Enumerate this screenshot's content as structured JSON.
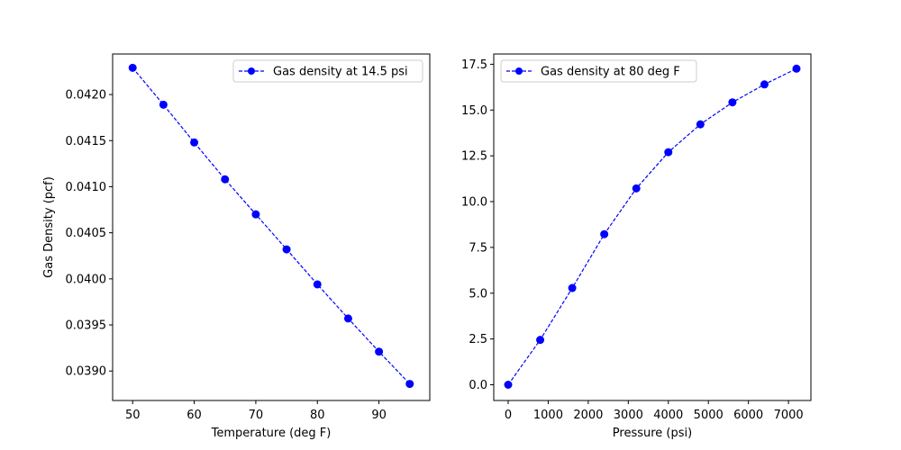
{
  "chart_data": [
    {
      "type": "line",
      "xlabel": "Temperature (deg F)",
      "ylabel": "Gas Density (pcf)",
      "xlim": [
        46.75,
        98.25
      ],
      "ylim": [
        0.03868,
        0.0244
      ],
      "ylim_note": "",
      "x_ticks": [
        50,
        60,
        70,
        80,
        90
      ],
      "y_ticks": [
        0.039,
        0.0395,
        0.04,
        0.0405,
        0.041,
        0.0415,
        0.042
      ],
      "x_tick_labels": [
        "50",
        "60",
        "70",
        "80",
        "90"
      ],
      "y_tick_labels": [
        "0.0390",
        "0.0395",
        "0.0400",
        "0.0405",
        "0.0410",
        "0.0415",
        "0.0420"
      ],
      "legend_position": "top-right",
      "series": [
        {
          "name": "Gas density at 14.5 psi",
          "color": "#0000ff",
          "line_style": "dashed",
          "marker": "circle",
          "x": [
            50,
            55,
            60,
            65,
            70,
            75,
            80,
            85,
            90,
            95
          ],
          "y": [
            0.04229,
            0.04189,
            0.04148,
            0.04108,
            0.0407,
            0.04032,
            0.03994,
            0.03957,
            0.03921,
            0.03886
          ]
        }
      ],
      "grid": false
    },
    {
      "type": "line",
      "xlabel": "Pressure (psi)",
      "ylabel": "",
      "xlim": [
        -360,
        7560
      ],
      "ylim": [
        -0.86,
        18.06
      ],
      "x_ticks": [
        0,
        1000,
        2000,
        3000,
        4000,
        5000,
        6000,
        7000
      ],
      "y_ticks": [
        0.0,
        2.5,
        5.0,
        7.5,
        10.0,
        12.5,
        15.0,
        17.5
      ],
      "x_tick_labels": [
        "0",
        "1000",
        "2000",
        "3000",
        "4000",
        "5000",
        "6000",
        "7000"
      ],
      "y_tick_labels": [
        "0.0",
        "2.5",
        "5.0",
        "7.5",
        "10.0",
        "12.5",
        "15.0",
        "17.5"
      ],
      "legend_position": "top-left",
      "series": [
        {
          "name": "Gas density at 80 deg F",
          "color": "#0000ff",
          "line_style": "dashed",
          "marker": "circle",
          "x": [
            0,
            800,
            1600,
            2400,
            3200,
            4000,
            4800,
            5600,
            6400,
            7200
          ],
          "y": [
            0.0,
            2.45,
            5.28,
            8.22,
            10.72,
            12.7,
            14.22,
            15.42,
            16.4,
            17.26
          ]
        }
      ],
      "grid": false
    }
  ]
}
